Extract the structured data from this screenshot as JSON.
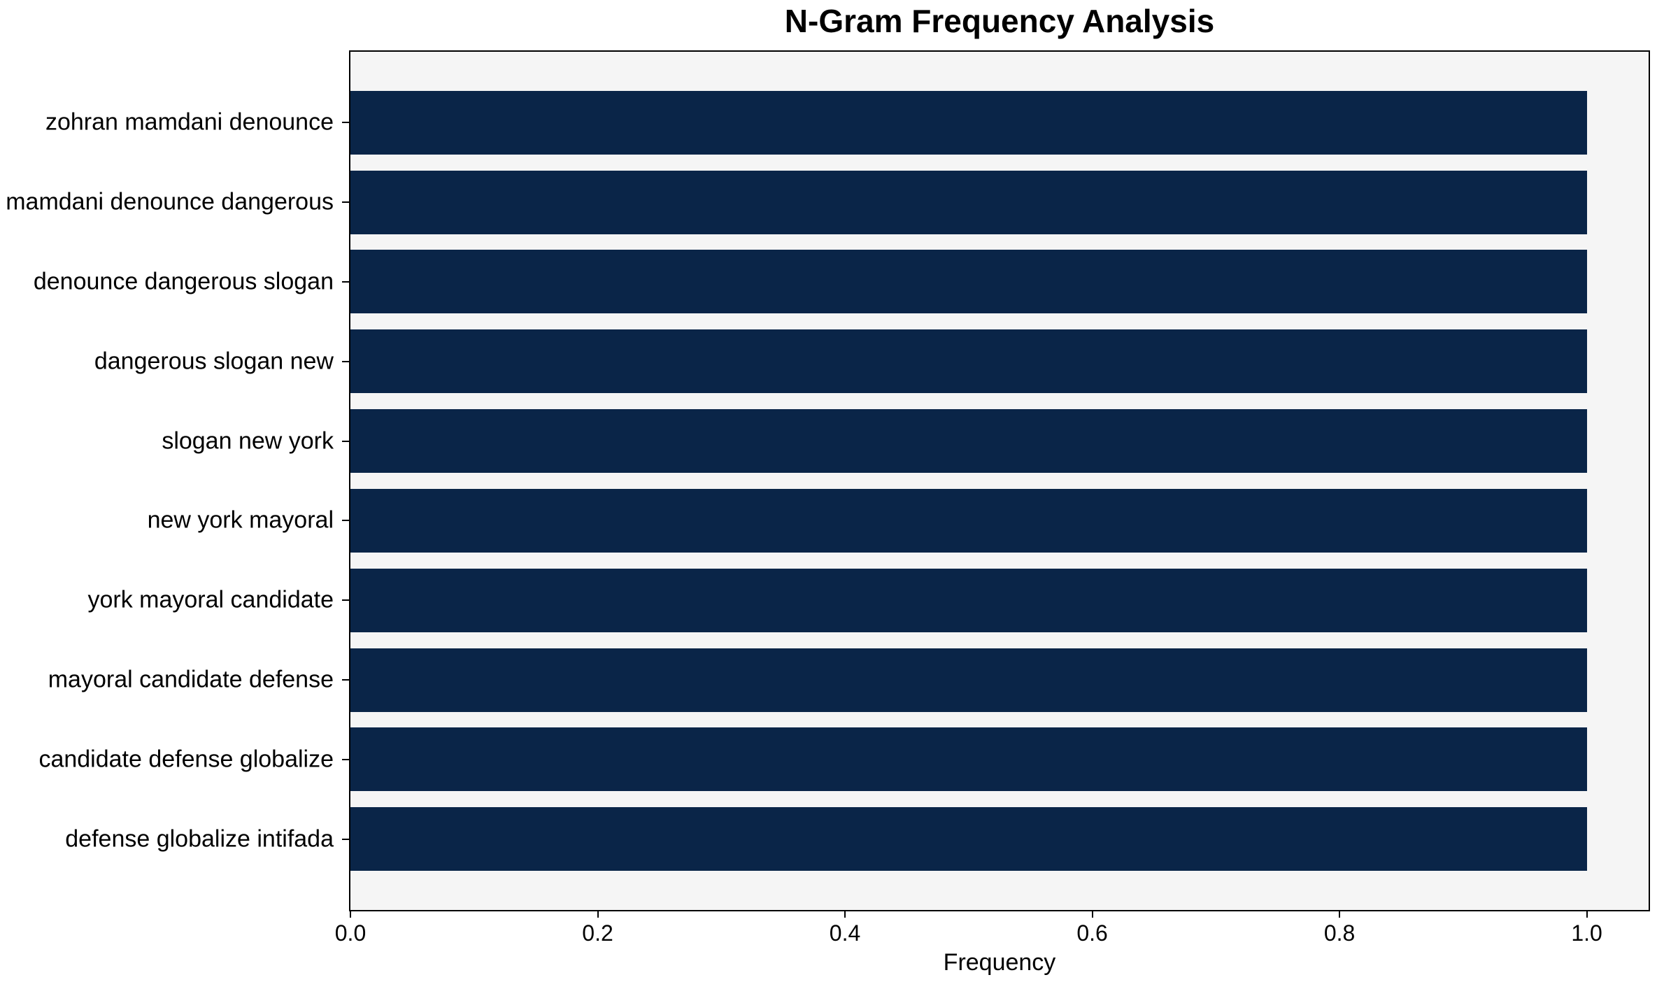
{
  "chart_data": {
    "type": "bar",
    "orientation": "horizontal",
    "title": "N-Gram Frequency Analysis",
    "xlabel": "Frequency",
    "categories": [
      "zohran mamdani denounce",
      "mamdani denounce dangerous",
      "denounce dangerous slogan",
      "dangerous slogan new",
      "slogan new york",
      "new york mayoral",
      "york mayoral candidate",
      "mayoral candidate defense",
      "candidate defense globalize",
      "defense globalize intifada"
    ],
    "values": [
      1.0,
      1.0,
      1.0,
      1.0,
      1.0,
      1.0,
      1.0,
      1.0,
      1.0,
      1.0
    ],
    "xlim": [
      0,
      1.05
    ],
    "xticks": [
      0.0,
      0.2,
      0.4,
      0.6,
      0.8,
      1.0
    ],
    "xtick_labels": [
      "0.0",
      "0.2",
      "0.4",
      "0.6",
      "0.8",
      "1.0"
    ],
    "grid": false,
    "legend": null,
    "colors": {
      "bar": "#0a2548",
      "plot_background": "#f5f5f5",
      "figure_background": "#ffffff",
      "text": "#000000"
    }
  }
}
